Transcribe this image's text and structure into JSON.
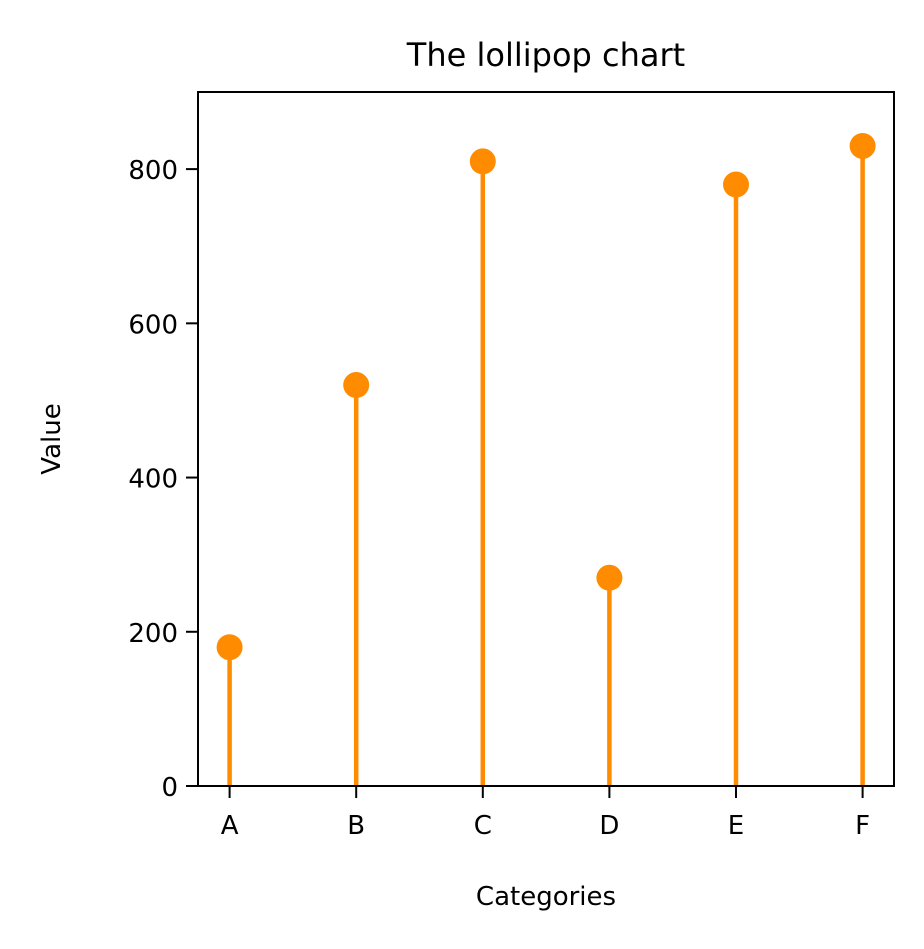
{
  "chart_data": {
    "type": "lollipop",
    "title": "The lollipop chart",
    "xlabel": "Categories",
    "ylabel": "Value",
    "categories": [
      "A",
      "B",
      "C",
      "D",
      "E",
      "F"
    ],
    "values": [
      180,
      520,
      810,
      270,
      780,
      830
    ],
    "ylim": [
      0,
      900
    ],
    "yticks": [
      0,
      200,
      400,
      600,
      800
    ],
    "grid": false,
    "legend": "none",
    "color": "#ff8c00"
  }
}
